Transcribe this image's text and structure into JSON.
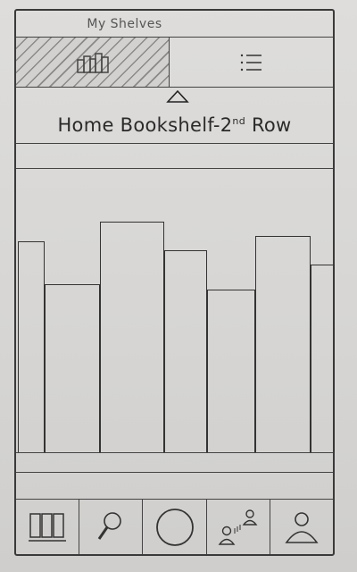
{
  "header": {
    "title": "My Shelves"
  },
  "view_toggle": {
    "options": [
      {
        "icon": "bookshelf-icon",
        "selected": true
      },
      {
        "icon": "list-icon",
        "selected": false
      }
    ]
  },
  "shelf": {
    "name": "Home Bookshelf-2",
    "name_suffix": "nd",
    "name_rest": " Row"
  },
  "tabbar": {
    "tabs": [
      {
        "icon": "shelves-icon"
      },
      {
        "icon": "search-icon"
      },
      {
        "icon": "circle-icon"
      },
      {
        "icon": "friends-icon"
      },
      {
        "icon": "profile-icon"
      }
    ]
  }
}
